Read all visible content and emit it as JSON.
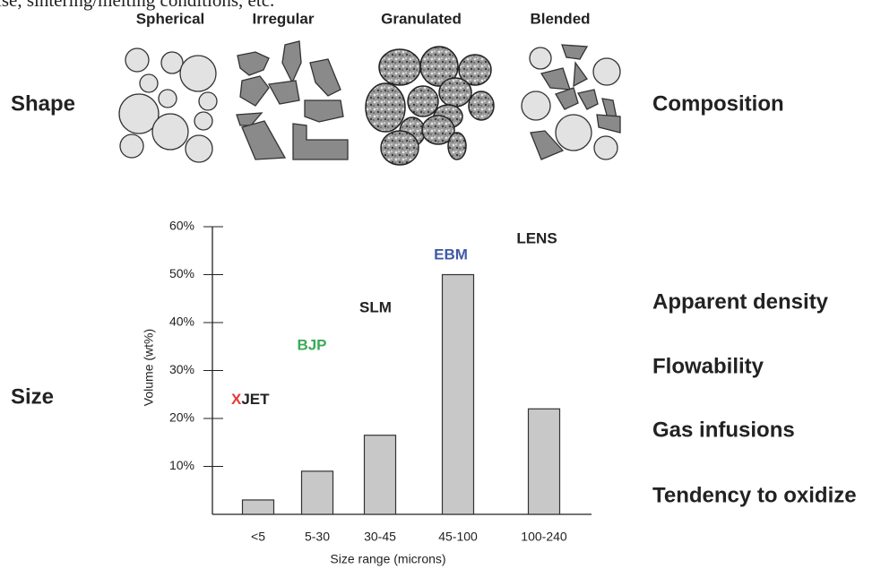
{
  "header_text": "ise, sintering/melting conditions, etc.",
  "shape_row": {
    "label": "Shape",
    "right_label": "Composition",
    "columns": [
      "Spherical",
      "Irregular",
      "Granulated",
      "Blended"
    ]
  },
  "size_label": "Size",
  "properties": [
    "Apparent density",
    "Flowability",
    "Gas infusions",
    "Tendency to oxidize"
  ],
  "chart_data": {
    "type": "bar",
    "categories": [
      "<5",
      "5-30",
      "30-45",
      "45-100",
      "100-240"
    ],
    "values": [
      3,
      9,
      16.5,
      50,
      22
    ],
    "color": "#c8c8c8",
    "xlabel": "Size range (microns)",
    "ylabel": "Volume (wt%)",
    "ylim": [
      0,
      60
    ],
    "yticks": [
      {
        "value": 10,
        "label": "10%"
      },
      {
        "value": 20,
        "label": "20%"
      },
      {
        "value": 30,
        "label": "30%"
      },
      {
        "value": 40,
        "label": "40%"
      },
      {
        "value": 50,
        "label": "50%"
      },
      {
        "value": 60,
        "label": "60%"
      }
    ],
    "annotations": [
      {
        "text": "XJET",
        "color": "#222222"
      },
      {
        "text": "BJP",
        "color": "#3aaa5a"
      },
      {
        "text": "SLM",
        "color": "#222222"
      },
      {
        "text": "EBM",
        "color": "#3f5aa8"
      },
      {
        "text": "LENS",
        "color": "#222222"
      }
    ]
  }
}
